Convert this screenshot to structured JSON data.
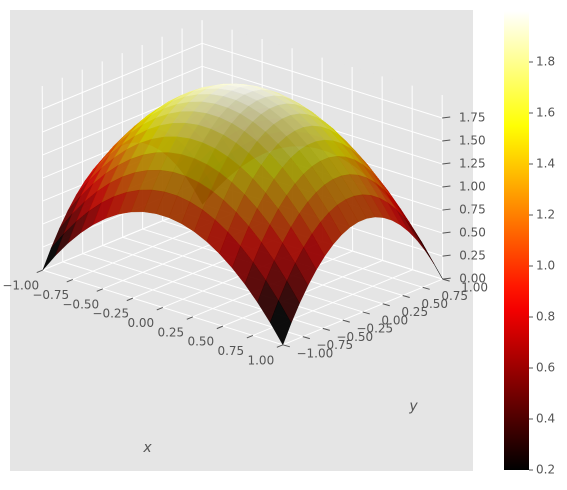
{
  "chart_data": {
    "type": "surface3d",
    "title": "",
    "function": "z = 2 - x^2 - y^2",
    "x": {
      "label": "x",
      "range": [
        -1.0,
        1.0
      ],
      "ticks": [
        -1.0,
        -0.75,
        -0.5,
        -0.25,
        0.0,
        0.25,
        0.5,
        0.75,
        1.0
      ],
      "tick_labels": [
        "−1.00",
        "−0.75",
        "−0.50",
        "−0.25",
        "0.00",
        "0.25",
        "0.50",
        "0.75",
        "1.00"
      ]
    },
    "y": {
      "label": "y",
      "range": [
        -1.0,
        1.0
      ],
      "ticks": [
        -1.0,
        -0.75,
        -0.5,
        -0.25,
        0.0,
        0.25,
        0.5,
        0.75,
        1.0
      ],
      "tick_labels": [
        "−1.00",
        "−0.75",
        "−0.50",
        "−0.25",
        "0.00",
        "0.25",
        "0.50",
        "0.75",
        "1.00"
      ]
    },
    "z": {
      "label": "",
      "range": [
        0.0,
        2.0
      ],
      "ticks": [
        0.0,
        0.25,
        0.5,
        0.75,
        1.0,
        1.25,
        1.5,
        1.75
      ],
      "tick_labels": [
        "0.00",
        "0.25",
        "0.50",
        "0.75",
        "1.00",
        "1.25",
        "1.50",
        "1.75"
      ]
    },
    "grid_resolution": 20,
    "colormap": "hot",
    "colorbar": {
      "range": [
        0.2,
        2.0
      ],
      "ticks": [
        0.2,
        0.4,
        0.6,
        0.8,
        1.0,
        1.2,
        1.4,
        1.6,
        1.8
      ],
      "tick_labels": [
        "0.2",
        "0.4",
        "0.6",
        "0.8",
        "1.0",
        "1.2",
        "1.4",
        "1.6",
        "1.8"
      ]
    },
    "style": "ggplot",
    "grid": true,
    "colors": {
      "pane": "#e5e5e5",
      "grid": "#ffffff",
      "text": "#555555"
    }
  }
}
